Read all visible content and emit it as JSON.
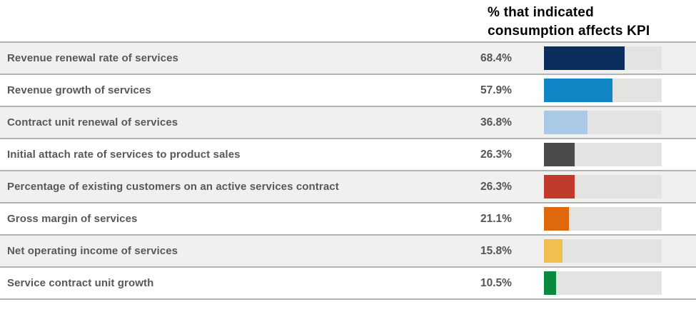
{
  "page": {
    "background": "#ffffff",
    "divider_color": "#b2b2b1",
    "alt_row_color": "#f0f0ee",
    "track_color": "#e3e3e1",
    "label_text_color": "#58585a",
    "title_text_color": "#000000"
  },
  "chart_data": {
    "type": "bar",
    "orientation": "horizontal",
    "title": "% that indicated consumption affects KPI",
    "xlabel": "",
    "ylabel": "",
    "xlim": [
      0,
      100
    ],
    "grid": false,
    "legend": "none",
    "value_suffix": "%",
    "categories": [
      "Revenue renewal rate of services",
      "Revenue growth of services",
      "Contract unit renewal of services",
      "Initial attach rate of services to product sales",
      "Percentage of existing customers on an active services contract",
      "Gross margin of services",
      "Net operating income of services",
      "Service contract unit growth"
    ],
    "values": [
      68.4,
      57.9,
      36.8,
      26.3,
      26.3,
      21.1,
      15.8,
      10.5
    ],
    "rows": [
      {
        "label": "Revenue renewal rate of services",
        "value": 68.4,
        "value_label": "68.4%",
        "color": "#0b2e5e",
        "color_name": "dark-navy"
      },
      {
        "label": "Revenue growth of services",
        "value": 57.9,
        "value_label": "57.9%",
        "color": "#1086c6",
        "color_name": "blue"
      },
      {
        "label": "Contract unit renewal of services",
        "value": 36.8,
        "value_label": "36.8%",
        "color": "#a9c9e7",
        "color_name": "light-blue"
      },
      {
        "label": "Initial attach rate of services to product sales",
        "value": 26.3,
        "value_label": "26.3%",
        "color": "#4b4b4b",
        "color_name": "dark-gray"
      },
      {
        "label": "Percentage of existing customers on an active services contract",
        "value": 26.3,
        "value_label": "26.3%",
        "color": "#c03a2e",
        "color_name": "red"
      },
      {
        "label": "Gross margin of services",
        "value": 21.1,
        "value_label": "21.1%",
        "color": "#e0680c",
        "color_name": "orange"
      },
      {
        "label": "Net operating income of services",
        "value": 15.8,
        "value_label": "15.8%",
        "color": "#f0bf51",
        "color_name": "gold"
      },
      {
        "label": "Service contract unit growth",
        "value": 10.5,
        "value_label": "10.5%",
        "color": "#0a8a3e",
        "color_name": "green"
      }
    ]
  }
}
